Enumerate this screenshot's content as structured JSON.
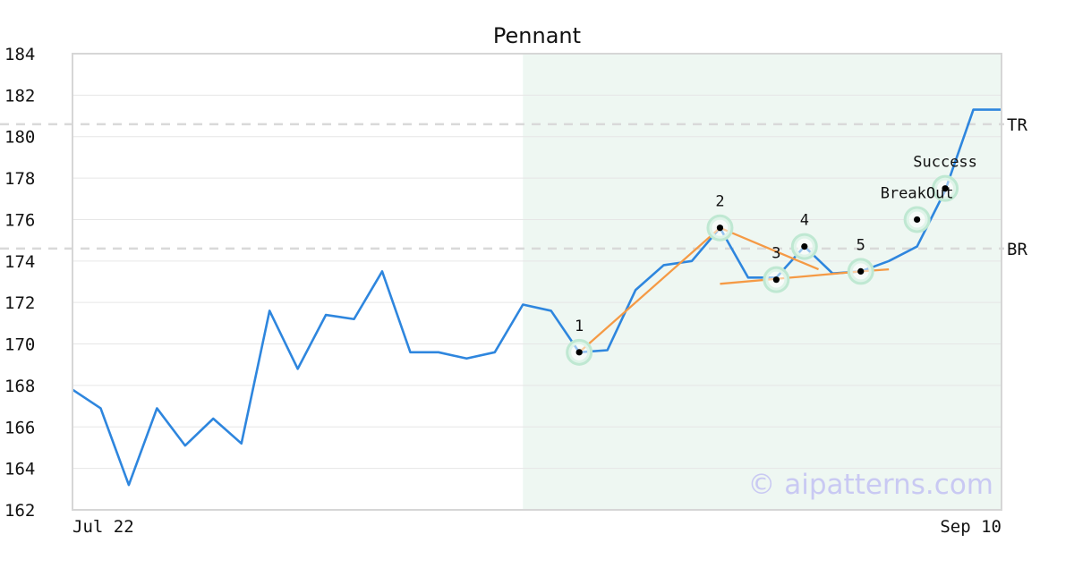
{
  "chart_data": {
    "type": "line",
    "title": "Pennant",
    "xlabel": "",
    "ylabel": "",
    "ylim": [
      162,
      184
    ],
    "yticks": [
      162,
      164,
      166,
      168,
      170,
      172,
      174,
      176,
      178,
      180,
      182,
      184
    ],
    "x_labels": {
      "start": "Jul 22",
      "end": "Sep 10"
    },
    "grid": true,
    "series": [
      {
        "values": [
          167.8,
          166.9,
          163.2,
          166.9,
          165.1,
          166.4,
          165.2,
          171.6,
          168.8,
          171.4,
          171.2,
          173.5,
          169.6,
          169.6,
          169.3,
          169.6,
          171.9,
          171.6,
          169.6,
          169.7,
          172.6,
          173.8,
          174.0,
          175.6,
          173.2,
          173.2,
          174.7,
          173.4,
          173.5,
          174.0,
          174.7,
          177.4,
          181.3,
          181.3
        ]
      }
    ],
    "highlight_region": {
      "x_start_index": 16,
      "x_end_index": 33
    },
    "reference_lines": [
      {
        "label": "TR",
        "value": 180.6
      },
      {
        "label": "BR",
        "value": 174.6
      }
    ],
    "trendlines": [
      {
        "points": [
          [
            18,
            169.6
          ],
          [
            23,
            175.6
          ],
          [
            26.5,
            173.6
          ]
        ]
      },
      {
        "points": [
          [
            23,
            172.9
          ],
          [
            28,
            173.5
          ],
          [
            29,
            173.6
          ]
        ]
      }
    ],
    "annotations": [
      {
        "label": "1",
        "x_index": 18,
        "value": 169.6,
        "label_position": "above"
      },
      {
        "label": "2",
        "x_index": 23,
        "value": 175.6,
        "label_position": "above"
      },
      {
        "label": "3",
        "x_index": 25,
        "value": 173.1,
        "label_position": "above"
      },
      {
        "label": "4",
        "x_index": 26,
        "value": 174.7,
        "label_position": "above"
      },
      {
        "label": "5",
        "x_index": 28,
        "value": 173.5,
        "label_position": "above"
      },
      {
        "label": "BreakOut",
        "x_index": 30,
        "value": 176.0,
        "label_position": "above"
      },
      {
        "label": "Success",
        "x_index": 31,
        "value": 177.5,
        "label_position": "above"
      }
    ],
    "watermark": "© aipatterns.com",
    "colors": {
      "line": "#2e86de",
      "trendline": "#f59a45",
      "highlight_fill": "#eef7f2",
      "marker_halo": "#bfe8d2",
      "marker_dot": "#000000",
      "reference_line": "#d9d9d9",
      "grid": "#e6e6e6",
      "axes_border": "#d6d6d6",
      "watermark": "#c9c9f3"
    }
  }
}
